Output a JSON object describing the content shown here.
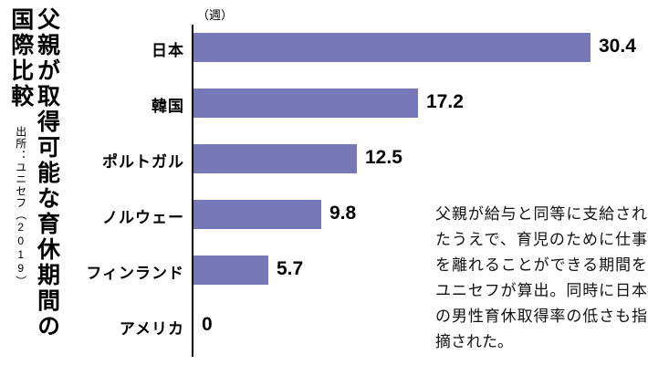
{
  "title": {
    "line1": "父親が取得可能な育休期間の",
    "line2": "国際比較",
    "source": "出所：ユニセフ（2019）"
  },
  "unit_label": "（週）",
  "annotation": "父親が給与と同等に支給されたうえで、育児のために仕事を離れることができる期間をユニセフが算出。同時に日本の男性育休取得率の低さも指摘された。",
  "chart_data": {
    "type": "bar",
    "orientation": "horizontal",
    "title": "父親が取得可能な育休期間の国際比較",
    "source": "出所：ユニセフ（2019）",
    "unit": "週",
    "categories": [
      "日本",
      "韓国",
      "ポルトガル",
      "ノルウェー",
      "フィンランド",
      "アメリカ"
    ],
    "values": [
      30.4,
      17.2,
      12.5,
      9.8,
      5.7,
      0
    ],
    "xlim": [
      0,
      32
    ],
    "bar_color": "#7678b7",
    "grid": false,
    "legend": false
  }
}
